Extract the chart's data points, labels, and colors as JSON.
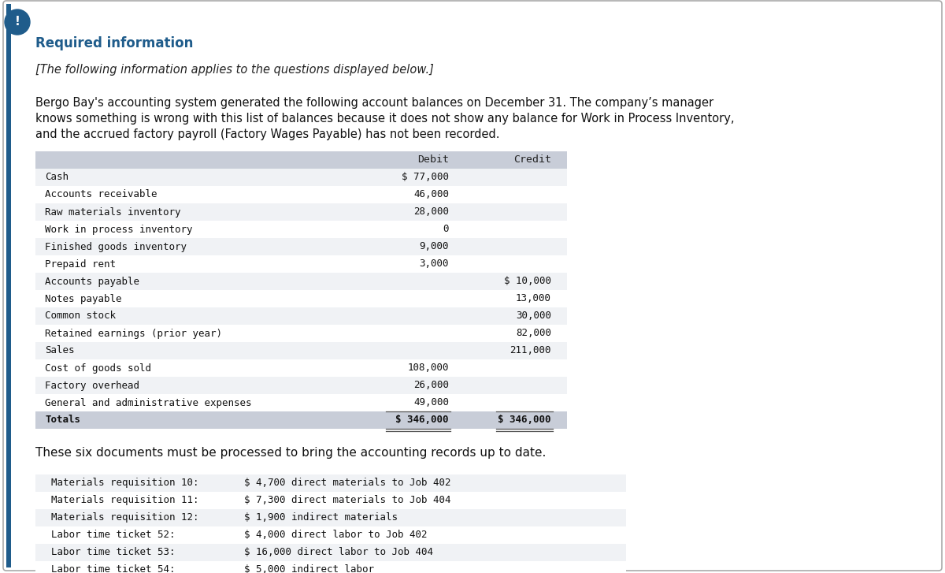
{
  "bg_color": "#ffffff",
  "outer_border_color": "#aaaaaa",
  "left_accent_color": "#1f5c8b",
  "exclamation_bg": "#1f5c8b",
  "required_info_color": "#1f5c8b",
  "required_info_text": "Required information",
  "italic_text": "[The following information applies to the questions displayed below.]",
  "body_line1": "Bergo Bay's accounting system generated the following account balances on December 31. The company’s manager",
  "body_line2": "knows something is wrong with this list of balances because it does not show any balance for Work in Process Inventory,",
  "body_line3": "and the accrued factory payroll (Factory Wages Payable) has not been recorded.",
  "table_header_bg": "#c8cdd8",
  "table_row_bg_light": "#f0f2f5",
  "table_row_bg_white": "#ffffff",
  "table_accounts": [
    "Cash",
    "Accounts receivable",
    "Raw materials inventory",
    "Work in process inventory",
    "Finished goods inventory",
    "Prepaid rent",
    "Accounts payable",
    "Notes payable",
    "Common stock",
    "Retained earnings (prior year)",
    "Sales",
    "Cost of goods sold",
    "Factory overhead",
    "General and administrative expenses",
    "Totals"
  ],
  "table_debit": [
    "$ 77,000",
    "46,000",
    "28,000",
    "0",
    "9,000",
    "3,000",
    "",
    "",
    "",
    "",
    "",
    "108,000",
    "26,000",
    "49,000",
    "$ 346,000"
  ],
  "table_credit": [
    "",
    "",
    "",
    "",
    "",
    "",
    "$ 10,000",
    "13,000",
    "30,000",
    "82,000",
    "211,000",
    "",
    "",
    "",
    "$ 346,000"
  ],
  "six_docs_text": "These six documents must be processed to bring the accounting records up to date.",
  "documents": [
    [
      "Materials requisition 10:",
      "$ 4,700 direct materials to Job 402"
    ],
    [
      "Materials requisition 11:",
      "$ 7,300 direct materials to Job 404"
    ],
    [
      "Materials requisition 12:",
      "$ 1,900 indirect materials"
    ],
    [
      "Labor time ticket 52:",
      "$ 4,000 direct labor to Job 402"
    ],
    [
      "Labor time ticket 53:",
      "$ 16,000 direct labor to Job 404"
    ],
    [
      "Labor time ticket 54:",
      "$ 5,000 indirect labor"
    ]
  ]
}
